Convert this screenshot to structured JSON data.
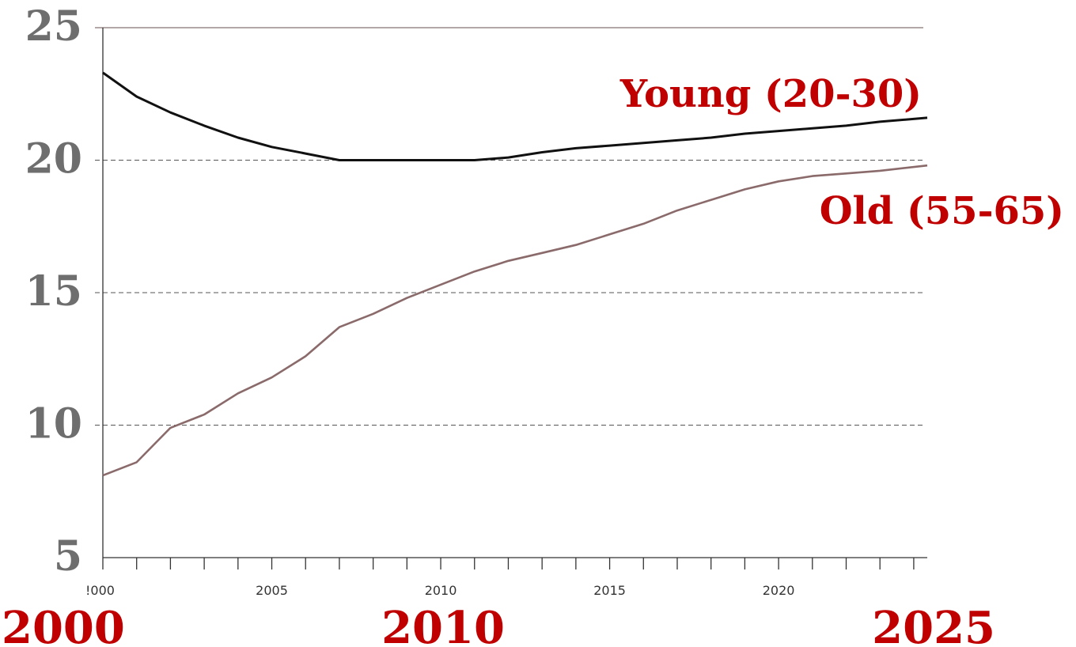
{
  "chart_data": {
    "type": "line",
    "title": "",
    "xlabel": "",
    "ylabel": "",
    "xlim": [
      2000,
      2024.4
    ],
    "ylim": [
      5,
      25
    ],
    "y_ticks": [
      5,
      10,
      15,
      20,
      25
    ],
    "y_tick_labels": [
      "5",
      "10",
      "15",
      "20",
      "25"
    ],
    "x_minor_ticks": [
      2000,
      2001,
      2002,
      2003,
      2004,
      2005,
      2006,
      2007,
      2008,
      2009,
      2010,
      2011,
      2012,
      2013,
      2014,
      2015,
      2016,
      2017,
      2018,
      2019,
      2020,
      2021,
      2022,
      2023,
      2024
    ],
    "x_small_labels": [
      {
        "x": 2000,
        "label": "!000"
      },
      {
        "x": 2005,
        "label": "2005"
      },
      {
        "x": 2010,
        "label": "2010"
      },
      {
        "x": 2015,
        "label": "2015"
      },
      {
        "x": 2020,
        "label": "2020"
      }
    ],
    "x_big_labels": [
      "2000",
      "2010",
      "2025"
    ],
    "grid": "dashed horizontal",
    "series": [
      {
        "name": "Young (20-30)",
        "color": "#111111",
        "label_color": "#c00000",
        "x": [
          2000,
          2001,
          2002,
          2003,
          2004,
          2005,
          2006,
          2007,
          2008,
          2009,
          2010,
          2011,
          2012,
          2013,
          2014,
          2015,
          2016,
          2017,
          2018,
          2019,
          2020,
          2021,
          2022,
          2023,
          2024.4
        ],
        "values": [
          23.3,
          22.4,
          21.8,
          21.3,
          20.85,
          20.5,
          20.25,
          20.0,
          20.0,
          20.0,
          20.0,
          20.0,
          20.1,
          20.3,
          20.45,
          20.55,
          20.65,
          20.75,
          20.85,
          21.0,
          21.1,
          21.2,
          21.3,
          21.45,
          21.6
        ]
      },
      {
        "name": "Old (55-65)",
        "color": "#8a6a6a",
        "label_color": "#c00000",
        "x": [
          2000,
          2001,
          2002,
          2003,
          2004,
          2005,
          2006,
          2007,
          2008,
          2009,
          2010,
          2011,
          2012,
          2013,
          2014,
          2015,
          2016,
          2017,
          2018,
          2019,
          2020,
          2021,
          2022,
          2023,
          2024.4
        ],
        "values": [
          8.1,
          8.6,
          9.9,
          10.4,
          11.2,
          11.8,
          12.6,
          13.7,
          14.2,
          14.8,
          15.3,
          15.8,
          16.2,
          16.5,
          16.8,
          17.2,
          17.6,
          18.1,
          18.5,
          18.9,
          19.2,
          19.4,
          19.5,
          19.6,
          19.8
        ]
      }
    ]
  }
}
